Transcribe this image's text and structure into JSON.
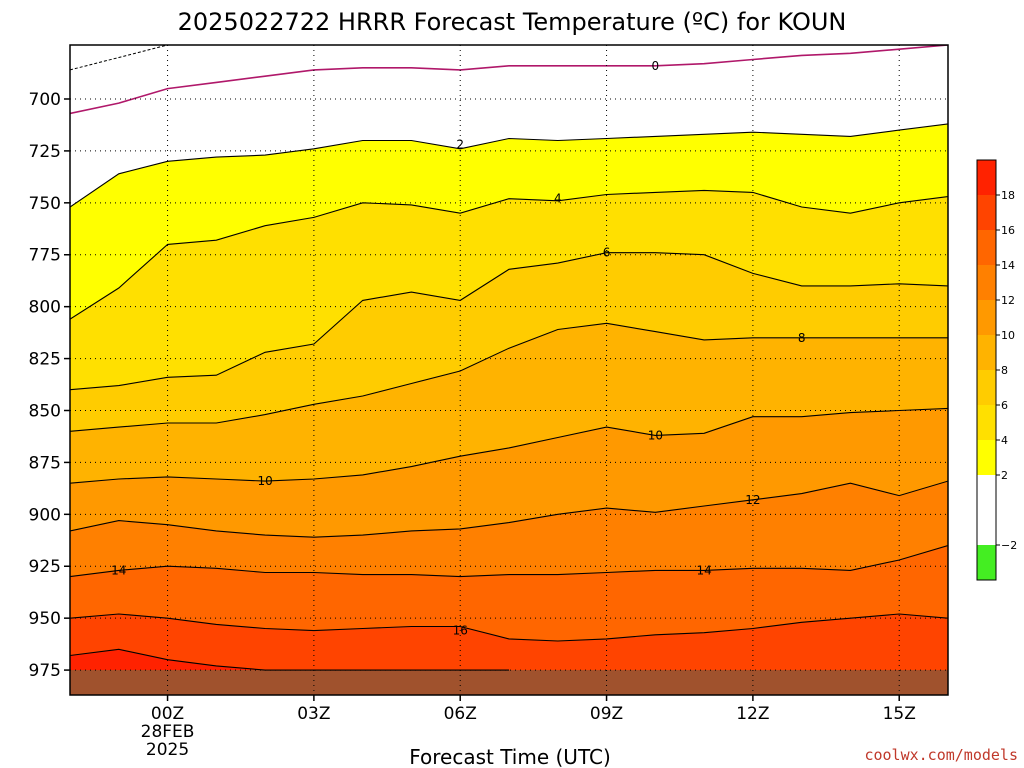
{
  "chart_data": {
    "type": "area",
    "title": "2025022722 HRRR Forecast Temperature (ºC) for KOUN",
    "xlabel": "Forecast Time (UTC)",
    "ylabel": "",
    "credit": "coolwx.com/models",
    "x_range_hours": [
      -2,
      16
    ],
    "y_range_hpa": [
      674,
      987
    ],
    "y_scale": "reversed",
    "grid": true,
    "legend_placement": "right",
    "x_ticks": [
      {
        "hour": 0,
        "lines": [
          "00Z",
          "28FEB",
          "2025"
        ]
      },
      {
        "hour": 3,
        "lines": [
          "03Z"
        ]
      },
      {
        "hour": 6,
        "lines": [
          "06Z"
        ]
      },
      {
        "hour": 9,
        "lines": [
          "09Z"
        ]
      },
      {
        "hour": 12,
        "lines": [
          "12Z"
        ]
      },
      {
        "hour": 15,
        "lines": [
          "15Z"
        ]
      }
    ],
    "y_ticks": [
      700,
      725,
      750,
      775,
      800,
      825,
      850,
      875,
      900,
      925,
      950,
      975
    ],
    "ground_pressure_hpa": 975,
    "colorbar": {
      "levels": [
        -4,
        -2,
        0,
        2,
        4,
        6,
        8,
        10,
        12,
        14,
        16,
        18,
        20
      ],
      "tick_labels": [
        "−2",
        "2",
        "4",
        "6",
        "8",
        "10",
        "12",
        "14",
        "16",
        "18"
      ],
      "colors": [
        "#44ee22",
        "#ffffff",
        "#ffffff",
        "#ffff00",
        "#ffe000",
        "#ffcc00",
        "#ffb300",
        "#ff9900",
        "#ff8000",
        "#ff6600",
        "#ff4400",
        "#ff2200"
      ]
    },
    "band_colors": {
      "below_-2": "#44ee22",
      "-2_to_2": "#ffffff",
      "2_to_4": "#ffff00",
      "4_to_6": "#ffe000",
      "6_to_8": "#ffcc00",
      "8_to_10": "#ffb300",
      "10_to_12": "#ff9900",
      "12_to_14": "#ff8000",
      "14_to_16": "#ff6600",
      "16_to_18": "#ff4400",
      "above_18": "#ff2200",
      "ground": "#a0522d"
    },
    "series": [
      {
        "name": "0",
        "x": [
          -2,
          -1,
          0,
          1,
          2,
          3,
          4,
          5,
          6,
          7,
          8,
          9,
          10,
          11,
          12,
          13,
          14,
          15,
          16
        ],
        "values": [
          707,
          702,
          695,
          692,
          689,
          686,
          685,
          685,
          686,
          684,
          684,
          684,
          684,
          683,
          681,
          679,
          678,
          676,
          674
        ]
      },
      {
        "name": "2",
        "x": [
          -2,
          -1,
          0,
          1,
          2,
          3,
          4,
          5,
          6,
          7,
          8,
          9,
          10,
          11,
          12,
          13,
          14,
          15,
          16
        ],
        "values": [
          752,
          736,
          730,
          728,
          727,
          724,
          720,
          720,
          724,
          719,
          720,
          719,
          718,
          717,
          716,
          717,
          718,
          715,
          712
        ]
      },
      {
        "name": "4",
        "x": [
          -2,
          -1,
          0,
          1,
          2,
          3,
          4,
          5,
          6,
          7,
          8,
          9,
          10,
          11,
          12,
          13,
          14,
          15,
          16
        ],
        "values": [
          806,
          791,
          770,
          768,
          761,
          757,
          750,
          751,
          755,
          748,
          749,
          746,
          745,
          744,
          745,
          752,
          755,
          750,
          747
        ]
      },
      {
        "name": "6",
        "x": [
          -2,
          -1,
          0,
          1,
          2,
          3,
          4,
          5,
          6,
          7,
          8,
          9,
          10,
          11,
          12,
          13,
          14,
          15,
          16
        ],
        "values": [
          840,
          838,
          834,
          833,
          822,
          818,
          797,
          793,
          797,
          782,
          779,
          774,
          774,
          775,
          784,
          790,
          790,
          789,
          790
        ]
      },
      {
        "name": "8",
        "x": [
          -2,
          -1,
          0,
          1,
          2,
          3,
          4,
          5,
          6,
          7,
          8,
          9,
          10,
          11,
          12,
          13,
          14,
          15,
          16
        ],
        "values": [
          860,
          858,
          856,
          856,
          852,
          847,
          843,
          837,
          831,
          820,
          811,
          808,
          812,
          816,
          815,
          815,
          815,
          815,
          815
        ]
      },
      {
        "name": "10",
        "x": [
          -2,
          -1,
          0,
          1,
          2,
          3,
          4,
          5,
          6,
          7,
          8,
          9,
          10,
          11,
          12,
          13,
          14,
          15,
          16
        ],
        "values": [
          885,
          883,
          882,
          883,
          884,
          883,
          881,
          877,
          872,
          868,
          863,
          858,
          862,
          861,
          853,
          853,
          851,
          850,
          849
        ]
      },
      {
        "name": "12",
        "x": [
          -2,
          -1,
          0,
          1,
          2,
          3,
          4,
          5,
          6,
          7,
          8,
          9,
          10,
          11,
          12,
          13,
          14,
          15,
          16
        ],
        "values": [
          908,
          903,
          905,
          908,
          910,
          911,
          910,
          908,
          907,
          904,
          900,
          897,
          899,
          896,
          893,
          890,
          885,
          891,
          884
        ]
      },
      {
        "name": "14",
        "x": [
          -2,
          -1,
          0,
          1,
          2,
          3,
          4,
          5,
          6,
          7,
          8,
          9,
          10,
          11,
          12,
          13,
          14,
          15,
          16
        ],
        "values": [
          930,
          927,
          925,
          926,
          928,
          928,
          929,
          929,
          930,
          929,
          929,
          928,
          927,
          927,
          926,
          926,
          927,
          922,
          915
        ]
      },
      {
        "name": "16",
        "x": [
          -2,
          -1,
          0,
          1,
          2,
          3,
          4,
          5,
          6,
          7,
          8,
          9,
          10,
          11,
          12,
          13,
          14,
          15,
          16
        ],
        "values": [
          950,
          948,
          950,
          953,
          955,
          956,
          955,
          954,
          954,
          960,
          961,
          960,
          958,
          957,
          955,
          952,
          950,
          948,
          950
        ]
      },
      {
        "name": "18",
        "x": [
          -2,
          -1,
          0,
          1,
          2,
          3,
          4,
          5,
          6,
          7
        ],
        "values": [
          968,
          965,
          970,
          973,
          975,
          975,
          975,
          975,
          975,
          975
        ]
      }
    ],
    "contour_labels": [
      {
        "text": "0",
        "hour": 10,
        "hpa": 684
      },
      {
        "text": "2",
        "hour": 6,
        "hpa": 722
      },
      {
        "text": "4",
        "hour": 8,
        "hpa": 748
      },
      {
        "text": "6",
        "hour": 9,
        "hpa": 774
      },
      {
        "text": "8",
        "hour": 13,
        "hpa": 815
      },
      {
        "text": "10",
        "hour": 10,
        "hpa": 862
      },
      {
        "text": "10",
        "hour": 2,
        "hpa": 884
      },
      {
        "text": "12",
        "hour": 12,
        "hpa": 893
      },
      {
        "text": "14",
        "hour": -1,
        "hpa": 927
      },
      {
        "text": "14",
        "hour": 11,
        "hpa": 927
      },
      {
        "text": "16",
        "hour": 6,
        "hpa": 956
      }
    ],
    "cold_region": {
      "x": [
        -2,
        -2,
        0,
        -1,
        -2
      ],
      "values": [
        674,
        686,
        674,
        680,
        686
      ]
    }
  }
}
